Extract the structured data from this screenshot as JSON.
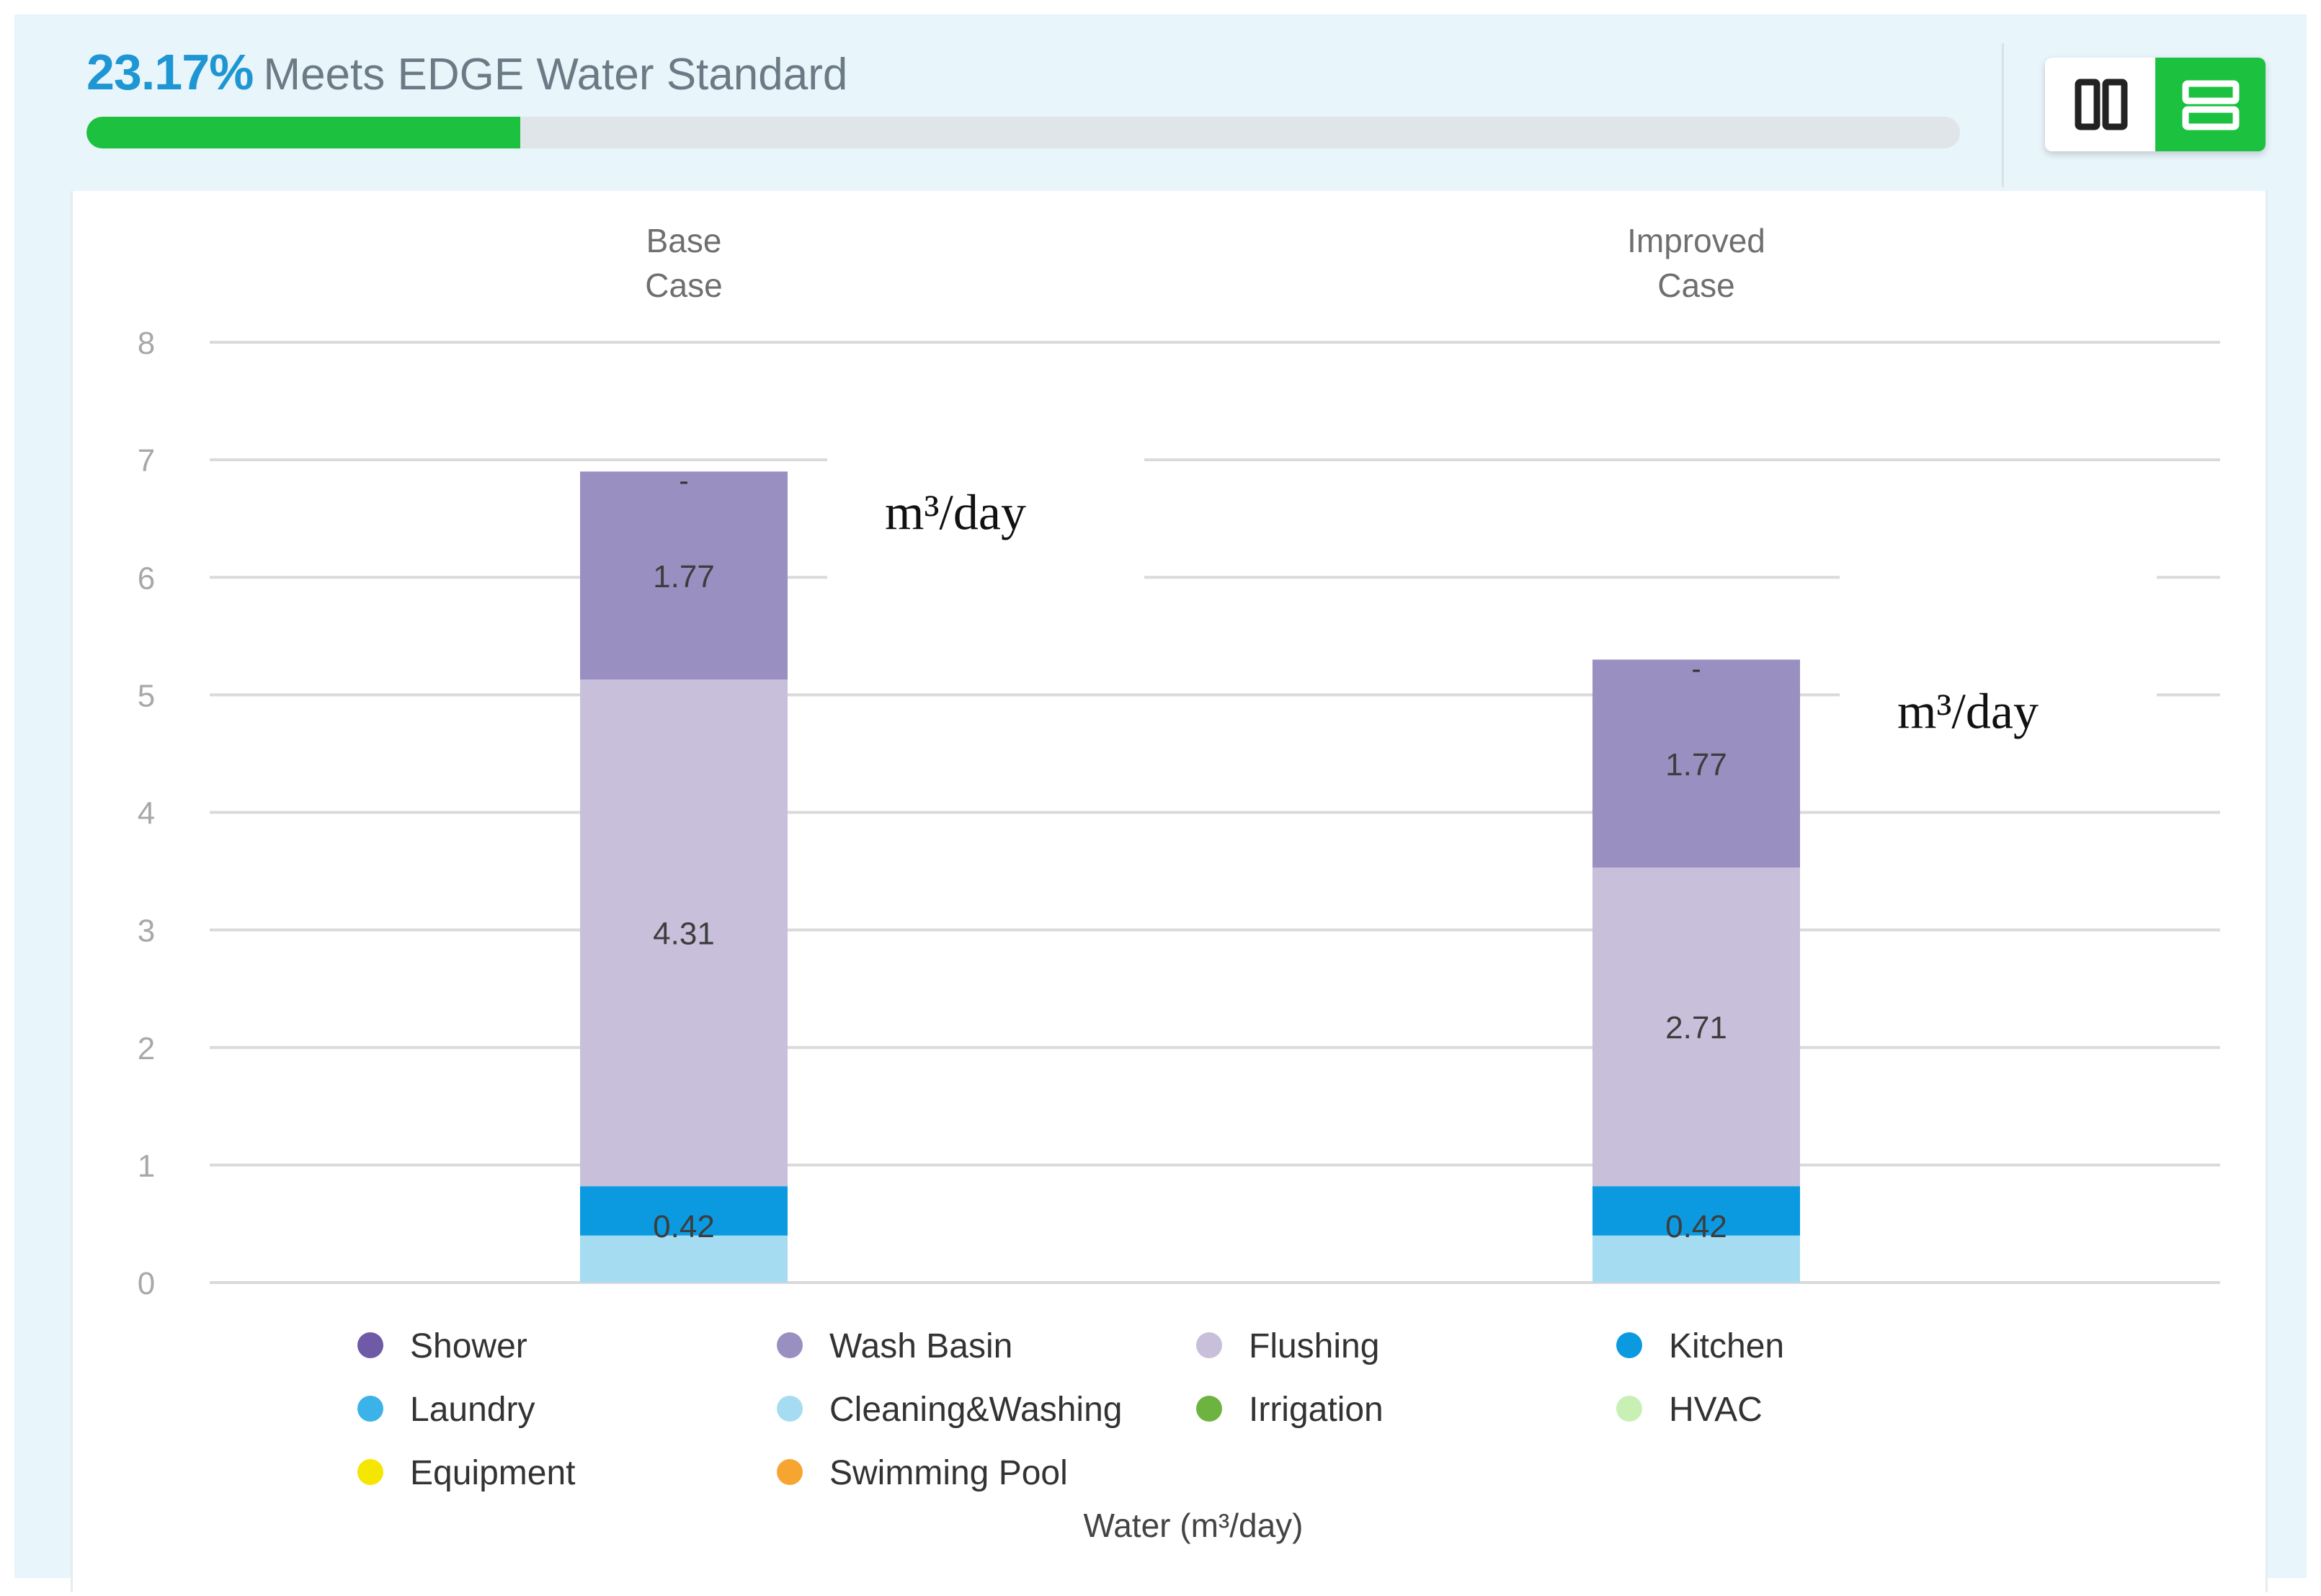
{
  "header": {
    "percent": "23.17%",
    "standard": "Meets EDGE Water Standard",
    "progress": 0.2317
  },
  "view_toggle": {
    "left_icon": "columns-icon",
    "right_icon": "rows-icon",
    "active": "right"
  },
  "colors": {
    "accent": "#1e96d3",
    "progress": "#1bc13f"
  },
  "chart_data": {
    "type": "bar",
    "stacked": true,
    "categories": [
      "Base\nCase",
      "Improved\nCase"
    ],
    "ylim": [
      0,
      8
    ],
    "yticks": [
      0,
      1,
      2,
      3,
      4,
      5,
      6,
      7,
      8
    ],
    "xlabel": "Water (m³/day)",
    "ylabel": "",
    "grid": true,
    "legend_position": "bottom",
    "unit_annotation": "m³/day",
    "series": [
      {
        "name": "Shower",
        "color": "#6e5aa6",
        "values": [
          0,
          0
        ],
        "labels": [
          "",
          ""
        ]
      },
      {
        "name": "Wash Basin",
        "color": "#9a8fc1",
        "values": [
          1.77,
          1.77
        ],
        "labels": [
          "1.77",
          "1.77"
        ]
      },
      {
        "name": "Flushing",
        "color": "#c8bfdb",
        "values": [
          4.31,
          2.71
        ],
        "labels": [
          "4.31",
          "2.71"
        ]
      },
      {
        "name": "Kitchen",
        "color": "#0b9ae0",
        "values": [
          0.42,
          0.42
        ],
        "labels": [
          "0.42",
          "0.42"
        ]
      },
      {
        "name": "Laundry",
        "color": "#3bb2e8",
        "values": [
          0,
          0
        ],
        "labels": [
          "",
          ""
        ]
      },
      {
        "name": "Cleaning&Washing",
        "color": "#a6dcf2",
        "values": [
          0.4,
          0.4
        ],
        "labels": [
          "",
          ""
        ]
      },
      {
        "name": "Irrigation",
        "color": "#6db33f",
        "values": [
          0,
          0
        ],
        "labels": [
          "",
          ""
        ]
      },
      {
        "name": "HVAC",
        "color": "#c8f0b4",
        "values": [
          0,
          0
        ],
        "labels": [
          "",
          ""
        ]
      },
      {
        "name": "Equipment",
        "color": "#f5e600",
        "values": [
          0,
          0
        ],
        "labels": [
          "",
          ""
        ]
      },
      {
        "name": "Swimming Pool",
        "color": "#f7a531",
        "values": [
          0,
          0
        ],
        "labels": [
          "",
          ""
        ]
      }
    ],
    "top_marker": "-"
  }
}
